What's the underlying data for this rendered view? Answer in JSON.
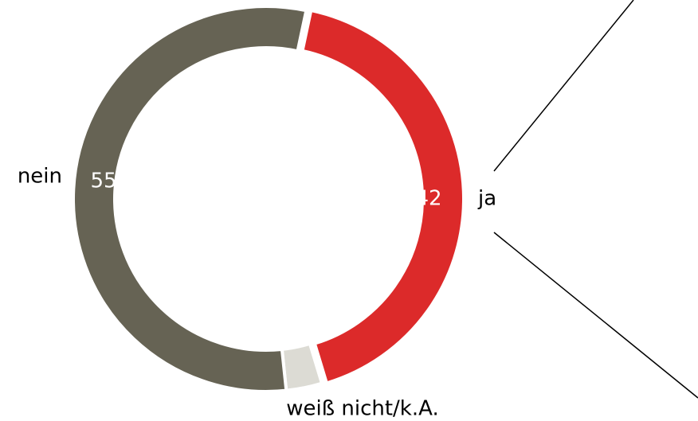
{
  "chart_data": {
    "type": "donut",
    "categories": [
      "ja",
      "weiß nicht/k.A.",
      "nein"
    ],
    "values": [
      42,
      3,
      55
    ],
    "colors": [
      "#dc2a2a",
      "#dcdbd4",
      "#666354"
    ],
    "value_labels_shown": [
      true,
      false,
      true
    ]
  }
}
